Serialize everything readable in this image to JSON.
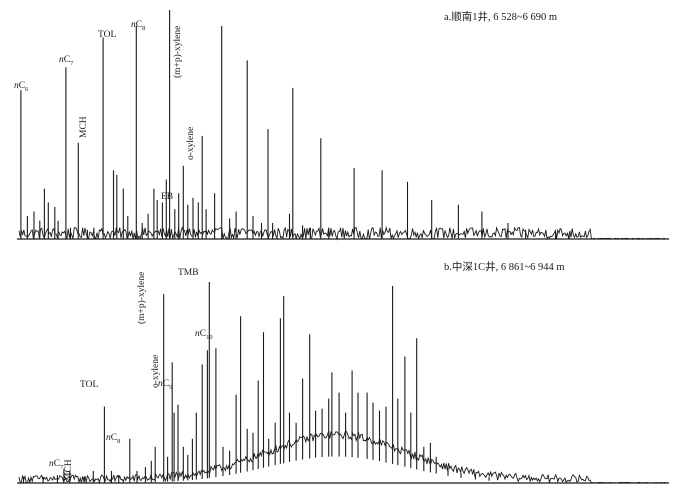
{
  "chart_data": [
    {
      "type": "line",
      "title": "a.顺南1井, 6 528~6 690 m",
      "xlabel": "",
      "ylabel": "",
      "ylim": [
        0,
        100
      ],
      "xlim": [
        0,
        100
      ],
      "grid": false,
      "labels": [
        {
          "key": "nc6",
          "text": "nC",
          "sub": "6",
          "x": 0.6
        },
        {
          "key": "nc7",
          "text": "nC",
          "sub": "7",
          "x": 7.5
        },
        {
          "key": "mch",
          "text": "MCH",
          "x": 9.4,
          "vertical": true
        },
        {
          "key": "tol",
          "text": "TOL",
          "x": 13.2
        },
        {
          "key": "nc8",
          "text": "nC",
          "sub": "8",
          "x": 18.3
        },
        {
          "key": "mpx",
          "text": "(m+p)-xylene",
          "x": 23.4,
          "vertical": true
        },
        {
          "key": "ox",
          "text": "o-xylene",
          "x": 25.5,
          "vertical": true
        },
        {
          "key": "eb",
          "text": "EB",
          "x": 21.7
        }
      ],
      "series": [
        {
          "peaks": [
            [
              0.6,
              65
            ],
            [
              1.6,
              10
            ],
            [
              2.6,
              12
            ],
            [
              3.5,
              8
            ],
            [
              4.2,
              22
            ],
            [
              4.8,
              16
            ],
            [
              5.8,
              14
            ],
            [
              6.3,
              8
            ],
            [
              7.5,
              75
            ],
            [
              8.2,
              5
            ],
            [
              9.4,
              42
            ],
            [
              10.8,
              4
            ],
            [
              11.8,
              5
            ],
            [
              13.2,
              88
            ],
            [
              14.8,
              30
            ],
            [
              15.3,
              28
            ],
            [
              16.3,
              22
            ],
            [
              17.0,
              10
            ],
            [
              18.3,
              93
            ],
            [
              19.2,
              7
            ],
            [
              20.1,
              11
            ],
            [
              21.0,
              22
            ],
            [
              21.5,
              17
            ],
            [
              22.3,
              16
            ],
            [
              22.9,
              26
            ],
            [
              23.4,
              100
            ],
            [
              24.2,
              13
            ],
            [
              24.8,
              20
            ],
            [
              25.5,
              32
            ],
            [
              26.2,
              15
            ],
            [
              27.0,
              18
            ],
            [
              27.8,
              16
            ],
            [
              28.4,
              45
            ],
            [
              29.0,
              13
            ],
            [
              30.3,
              20
            ],
            [
              31.4,
              93
            ],
            [
              32.6,
              9
            ],
            [
              33.6,
              12
            ],
            [
              35.3,
              78
            ],
            [
              36.2,
              10
            ],
            [
              37.5,
              7
            ],
            [
              38.5,
              48
            ],
            [
              39.2,
              7
            ],
            [
              41.8,
              11
            ],
            [
              42.3,
              66
            ],
            [
              43.8,
              6
            ],
            [
              45.0,
              5
            ],
            [
              46.6,
              44
            ],
            [
              47.8,
              5
            ],
            [
              51.7,
              31
            ],
            [
              56.0,
              30
            ],
            [
              59.9,
              25
            ],
            [
              63.6,
              17
            ],
            [
              67.7,
              15
            ],
            [
              71.3,
              12
            ],
            [
              75.3,
              7
            ],
            [
              78.0,
              4
            ],
            [
              82.6,
              3
            ],
            [
              84.7,
              2
            ]
          ]
        }
      ]
    },
    {
      "type": "line",
      "title": "b.中深1C井, 6 861~6 944 m",
      "xlabel": "",
      "ylabel": "",
      "ylim": [
        0,
        100
      ],
      "xlim": [
        0,
        100
      ],
      "grid": false,
      "labels": [
        {
          "key": "nc7",
          "text": "nC",
          "sub": "7",
          "x": 7.2
        },
        {
          "key": "mch",
          "text": "MCH",
          "x": 8.1,
          "vertical": true
        },
        {
          "key": "tol",
          "text": "TOL",
          "x": 13.4
        },
        {
          "key": "nc8",
          "text": "nC",
          "sub": "8",
          "x": 17.3
        },
        {
          "key": "mpx",
          "text": "(m+p)-xylene",
          "x": 22.5,
          "vertical": true
        },
        {
          "key": "ox",
          "text": "o-xylene",
          "x": 23.8,
          "vertical": true
        },
        {
          "key": "nc9",
          "text": "nC",
          "sub": "9",
          "x": 24.1
        },
        {
          "key": "tmb",
          "text": "TMB",
          "x": 29.5
        },
        {
          "key": "nc10",
          "text": "nC",
          "sub": "10",
          "x": 30.5
        }
      ],
      "series": [
        {
          "peaks": [
            [
              1.0,
              3
            ],
            [
              4.0,
              3
            ],
            [
              6.2,
              4
            ],
            [
              7.2,
              7
            ],
            [
              8.1,
              6
            ],
            [
              10.3,
              3
            ],
            [
              11.7,
              6
            ],
            [
              13.4,
              38
            ],
            [
              14.5,
              6
            ],
            [
              15.6,
              4
            ],
            [
              17.3,
              22
            ],
            [
              18.4,
              6
            ],
            [
              19.7,
              8
            ],
            [
              20.6,
              11
            ],
            [
              21.2,
              18
            ],
            [
              22.5,
              94
            ],
            [
              23.1,
              13
            ],
            [
              23.8,
              60
            ],
            [
              24.1,
              35
            ],
            [
              24.7,
              39
            ],
            [
              25.5,
              18
            ],
            [
              26.2,
              14
            ],
            [
              26.9,
              22
            ],
            [
              27.5,
              35
            ],
            [
              28.4,
              59
            ],
            [
              29.2,
              66
            ],
            [
              29.5,
              100
            ],
            [
              30.5,
              67
            ],
            [
              31.6,
              18
            ],
            [
              32.6,
              16
            ],
            [
              33.6,
              44
            ],
            [
              34.3,
              83
            ],
            [
              35.3,
              27
            ],
            [
              36.2,
              25
            ],
            [
              37.0,
              51
            ],
            [
              37.8,
              75
            ],
            [
              38.6,
              22
            ],
            [
              39.6,
              30
            ],
            [
              40.4,
              82
            ],
            [
              40.9,
              93
            ],
            [
              41.8,
              35
            ],
            [
              42.8,
              30
            ],
            [
              43.8,
              52
            ],
            [
              44.9,
              74
            ],
            [
              45.8,
              36
            ],
            [
              46.8,
              37
            ],
            [
              47.8,
              42
            ],
            [
              48.3,
              55
            ],
            [
              49.4,
              45
            ],
            [
              50.4,
              35
            ],
            [
              51.4,
              56
            ],
            [
              52.3,
              45
            ],
            [
              53.7,
              45
            ],
            [
              54.6,
              40
            ],
            [
              55.6,
              36
            ],
            [
              56.6,
              38
            ],
            [
              57.6,
              98
            ],
            [
              58.4,
              42
            ],
            [
              59.5,
              63
            ],
            [
              60.4,
              35
            ],
            [
              61.3,
              72
            ],
            [
              62.4,
              18
            ],
            [
              63.4,
              20
            ],
            [
              64.3,
              13
            ],
            [
              66.1,
              8
            ],
            [
              68.1,
              5
            ],
            [
              70.3,
              4
            ],
            [
              72.4,
              3
            ]
          ],
          "hump": {
            "center": 49.0,
            "width": 15.0,
            "height": 22
          }
        }
      ]
    }
  ]
}
